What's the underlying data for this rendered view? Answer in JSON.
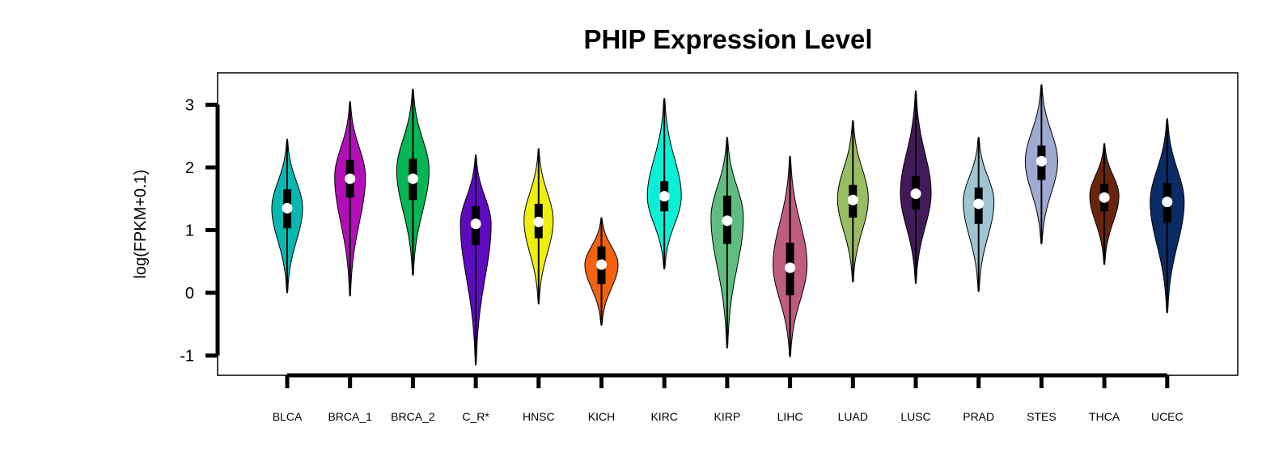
{
  "chart_data": {
    "type": "violin",
    "title": "PHIP Expression Level",
    "ylabel": "log(FPKM+0.1)",
    "xlabel": "",
    "ylim": [
      -1.35,
      3.5
    ],
    "yticks": [
      -1,
      0,
      1,
      2,
      3
    ],
    "grid": false,
    "legend": "none",
    "groups": [
      {
        "label": "BLCA",
        "color": "#08B7B0",
        "min": 0.0,
        "max": 2.45,
        "q1": 1.03,
        "median": 1.35,
        "q3": 1.65,
        "peak_y": 1.35,
        "half_width": 0.38
      },
      {
        "label": "BRCA_1",
        "color": "#B20FB9",
        "min": -0.05,
        "max": 3.05,
        "q1": 1.52,
        "median": 1.82,
        "q3": 2.12,
        "peak_y": 1.85,
        "half_width": 0.38
      },
      {
        "label": "BRCA_2",
        "color": "#06B553",
        "min": 0.28,
        "max": 3.25,
        "q1": 1.48,
        "median": 1.82,
        "q3": 2.14,
        "peak_y": 1.95,
        "half_width": 0.4
      },
      {
        "label": "C_R*",
        "color": "#5E0ABF",
        "min": -1.15,
        "max": 2.2,
        "q1": 0.76,
        "median": 1.1,
        "q3": 1.38,
        "peak_y": 1.1,
        "half_width": 0.38
      },
      {
        "label": "HNSC",
        "color": "#EFEF0E",
        "min": -0.18,
        "max": 2.3,
        "q1": 0.87,
        "median": 1.13,
        "q3": 1.42,
        "peak_y": 1.15,
        "half_width": 0.36
      },
      {
        "label": "KICH",
        "color": "#F36210",
        "min": -0.52,
        "max": 1.2,
        "q1": 0.14,
        "median": 0.45,
        "q3": 0.74,
        "peak_y": 0.45,
        "half_width": 0.41
      },
      {
        "label": "KIRC",
        "color": "#0AEFD6",
        "min": 0.38,
        "max": 3.1,
        "q1": 1.3,
        "median": 1.54,
        "q3": 1.78,
        "peak_y": 1.54,
        "half_width": 0.42
      },
      {
        "label": "KIRP",
        "color": "#5FBD82",
        "min": -0.88,
        "max": 2.48,
        "q1": 0.78,
        "median": 1.15,
        "q3": 1.55,
        "peak_y": 1.2,
        "half_width": 0.4
      },
      {
        "label": "LIHC",
        "color": "#BF5E7C",
        "min": -1.02,
        "max": 2.18,
        "q1": -0.04,
        "median": 0.4,
        "q3": 0.8,
        "peak_y": 0.45,
        "half_width": 0.42
      },
      {
        "label": "LUAD",
        "color": "#99BD62",
        "min": 0.17,
        "max": 2.75,
        "q1": 1.2,
        "median": 1.48,
        "q3": 1.72,
        "peak_y": 1.5,
        "half_width": 0.38
      },
      {
        "label": "LUSC",
        "color": "#421A5A",
        "min": 0.15,
        "max": 3.22,
        "q1": 1.33,
        "median": 1.58,
        "q3": 1.86,
        "peak_y": 1.6,
        "half_width": 0.38
      },
      {
        "label": "PRAD",
        "color": "#9EC5D2",
        "min": 0.02,
        "max": 2.48,
        "q1": 1.1,
        "median": 1.42,
        "q3": 1.68,
        "peak_y": 1.45,
        "half_width": 0.38
      },
      {
        "label": "STES",
        "color": "#9EAAD2",
        "min": 0.78,
        "max": 3.32,
        "q1": 1.8,
        "median": 2.1,
        "q3": 2.35,
        "peak_y": 2.1,
        "half_width": 0.4
      },
      {
        "label": "THCA",
        "color": "#6A240C",
        "min": 0.45,
        "max": 2.38,
        "q1": 1.3,
        "median": 1.52,
        "q3": 1.74,
        "peak_y": 1.55,
        "half_width": 0.36
      },
      {
        "label": "UCEC",
        "color": "#0A2B63",
        "min": -0.32,
        "max": 2.78,
        "q1": 1.12,
        "median": 1.45,
        "q3": 1.75,
        "peak_y": 1.45,
        "half_width": 0.42
      }
    ]
  }
}
